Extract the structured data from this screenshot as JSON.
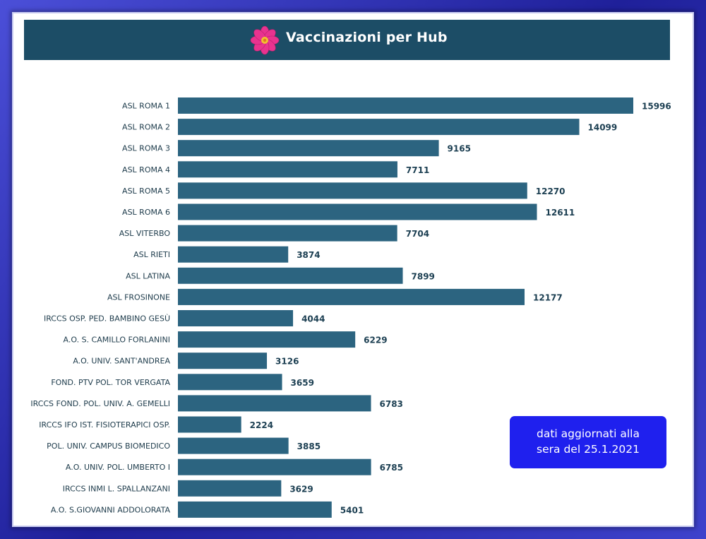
{
  "header": {
    "title": "Vaccinazioni per Hub",
    "logo_icon": "primrose-flower-icon"
  },
  "note": {
    "line1": "dati aggiornati alla",
    "line2": "sera del 25.1.2021"
  },
  "colors": {
    "frame": "#2e2fb8",
    "header_bg": "#1c4d66",
    "bar": "#2c6480",
    "note_bg": "#1f20ee",
    "flower_petals": "#e8338f",
    "flower_center": "#f2c230"
  },
  "chart_data": {
    "type": "bar",
    "orientation": "horizontal",
    "title": "Vaccinazioni per Hub",
    "grid": false,
    "categories": [
      "ASL ROMA 1",
      "ASL ROMA 2",
      "ASL ROMA 3",
      "ASL ROMA 4",
      "ASL ROMA 5",
      "ASL ROMA 6",
      "ASL VITERBO",
      "ASL RIETI",
      "ASL LATINA",
      "ASL FROSINONE",
      "IRCCS OSP. PED. BAMBINO GESÙ",
      "A.O. S. CAMILLO FORLANINI",
      "A.O. UNIV. SANT'ANDREA",
      "FOND. PTV POL. TOR VERGATA",
      "IRCCS FOND. POL. UNIV. A. GEMELLI",
      "IRCCS IFO IST. FISIOTERAPICI OSP.",
      "POL. UNIV. CAMPUS BIOMEDICO",
      "A.O. UNIV. POL. UMBERTO I",
      "IRCCS INMI L. SPALLANZANI",
      "A.O. S.GIOVANNI ADDOLORATA"
    ],
    "values": [
      15996,
      14099,
      9165,
      7711,
      12270,
      12611,
      7704,
      3874,
      7899,
      12177,
      4044,
      6229,
      3126,
      3659,
      6783,
      2224,
      3885,
      6785,
      3629,
      5401
    ],
    "xlim": [
      0,
      15996
    ]
  }
}
